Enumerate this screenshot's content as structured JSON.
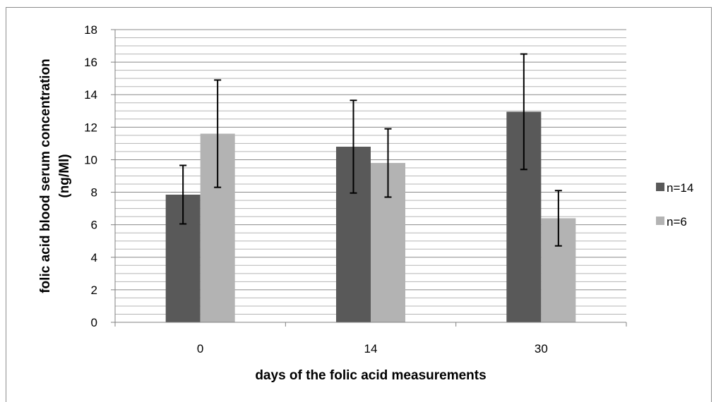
{
  "chart_data": {
    "type": "bar",
    "categories": [
      "0",
      "14",
      "30"
    ],
    "series": [
      {
        "name": "n=14",
        "color": "#595959",
        "values": [
          7.85,
          10.8,
          12.95
        ],
        "errors": [
          1.8,
          2.85,
          3.55
        ]
      },
      {
        "name": "n=6",
        "color": "#b3b3b3",
        "values": [
          11.6,
          9.8,
          6.4
        ],
        "errors": [
          3.3,
          2.1,
          1.7
        ]
      }
    ],
    "xlabel": "days of the folic acid measurements",
    "ylabel": [
      "folic acid blood serum concentration",
      "(ng/Ml)"
    ],
    "ylim": [
      0,
      18
    ],
    "yticks": [
      0,
      2,
      4,
      6,
      8,
      10,
      12,
      14,
      16,
      18
    ],
    "grid": true,
    "legend_position": "right"
  }
}
